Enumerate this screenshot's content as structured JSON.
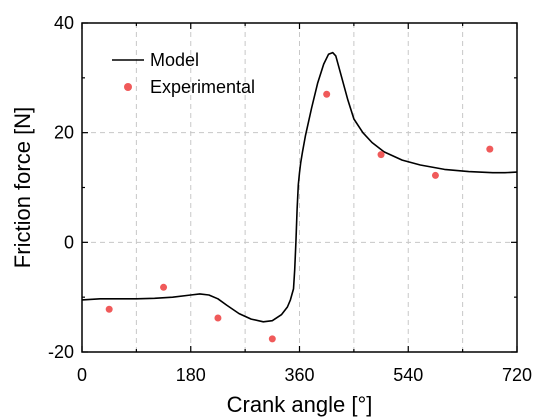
{
  "chart_data": {
    "type": "line",
    "xlabel": "Crank angle [°]",
    "ylabel": "Friction force [N]",
    "xlim": [
      0,
      720
    ],
    "ylim": [
      -20,
      40
    ],
    "xticks": [
      0,
      180,
      360,
      540,
      720
    ],
    "yticks": [
      -20,
      0,
      20,
      40
    ],
    "grid": true,
    "legend_position": "top-left",
    "series": [
      {
        "name": "Model",
        "kind": "line",
        "color": "#000000",
        "x": [
          0,
          30,
          60,
          90,
          120,
          150,
          180,
          195,
          210,
          225,
          240,
          260,
          280,
          300,
          315,
          330,
          340,
          345,
          350,
          352,
          354,
          356,
          358,
          360,
          362,
          365,
          370,
          380,
          390,
          400,
          408,
          415,
          420,
          430,
          440,
          450,
          465,
          480,
          500,
          530,
          560,
          600,
          640,
          680,
          700,
          720
        ],
        "y": [
          -10.5,
          -10.3,
          -10.3,
          -10.3,
          -10.2,
          -10.0,
          -9.6,
          -9.4,
          -9.6,
          -10.3,
          -11.5,
          -13.0,
          -14.0,
          -14.5,
          -14.3,
          -13.2,
          -11.8,
          -10.5,
          -8.5,
          -5,
          0,
          6,
          10.5,
          12.7,
          14.5,
          16.5,
          19.5,
          24.5,
          29,
          32.5,
          34.3,
          34.6,
          34,
          30,
          26,
          22.5,
          20,
          18.2,
          16.5,
          15,
          14.1,
          13.3,
          12.9,
          12.7,
          12.7,
          12.8
        ]
      },
      {
        "name": "Experimental",
        "kind": "scatter",
        "color": "#f05a5a",
        "x": [
          45,
          135,
          225,
          315,
          405,
          495,
          585,
          675
        ],
        "y": [
          -12.2,
          -8.2,
          -13.8,
          -17.6,
          27,
          16,
          12.2,
          17
        ]
      }
    ]
  }
}
